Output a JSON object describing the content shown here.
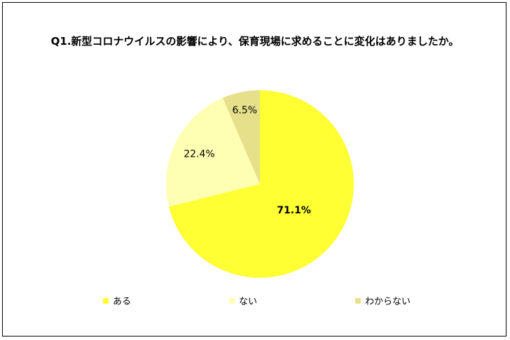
{
  "chart_data": {
    "type": "pie",
    "title": "Q1.新型コロナウイルスの影響により、保育現場に求めることに変化はありましたか。",
    "categories": [
      "ある",
      "ない",
      "わからない"
    ],
    "values": [
      71.1,
      22.4,
      6.5
    ],
    "data_labels": [
      "71.1%",
      "22.4%",
      "6.5%"
    ],
    "colors": [
      "#ffff33",
      "#ffffb3",
      "#e6e08a"
    ],
    "legend_position": "bottom",
    "start_angle": "12-o'clock",
    "direction": "clockwise"
  }
}
